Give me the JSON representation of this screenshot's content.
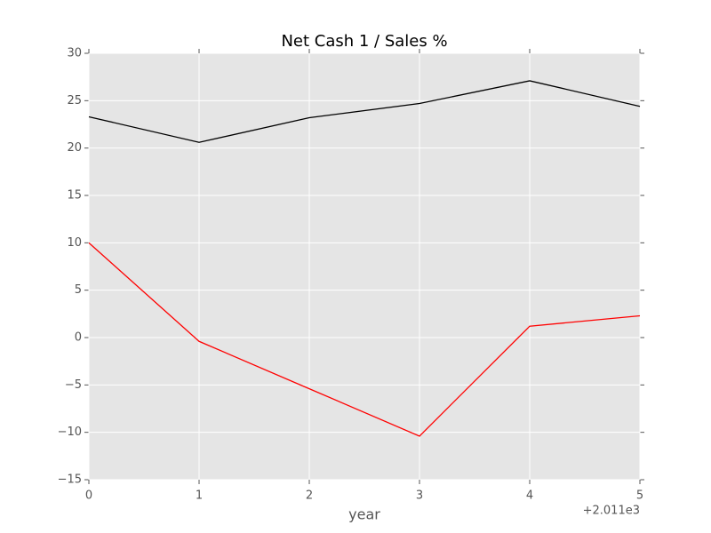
{
  "chart_data": {
    "type": "line",
    "title": "Net Cash 1 / Sales %",
    "x_label": "year",
    "x_offset_label": "+2.011e3",
    "x": [
      2011,
      2012,
      2013,
      2014,
      2015,
      2016
    ],
    "series": [
      {
        "color": "#000000",
        "values": [
          23.3,
          20.6,
          23.2,
          24.7,
          27.1,
          24.4
        ]
      },
      {
        "color": "#ff0000",
        "values": [
          10.0,
          -0.4,
          -5.4,
          -10.4,
          1.2,
          2.3
        ]
      }
    ],
    "xlim": [
      2011,
      2016
    ],
    "xticks": [
      {
        "value": 2011,
        "label": "0"
      },
      {
        "value": 2012,
        "label": "1"
      },
      {
        "value": 2013,
        "label": "2"
      },
      {
        "value": 2014,
        "label": "3"
      },
      {
        "value": 2015,
        "label": "4"
      },
      {
        "value": 2016,
        "label": "5"
      }
    ],
    "ylim": [
      -15,
      30
    ],
    "yticks": [
      {
        "value": -15,
        "label": "−15"
      },
      {
        "value": -10,
        "label": "−10"
      },
      {
        "value": -5,
        "label": "−5"
      },
      0,
      5,
      10,
      15,
      20,
      25,
      30
    ],
    "grid": true,
    "background": "#e5e5e5"
  }
}
